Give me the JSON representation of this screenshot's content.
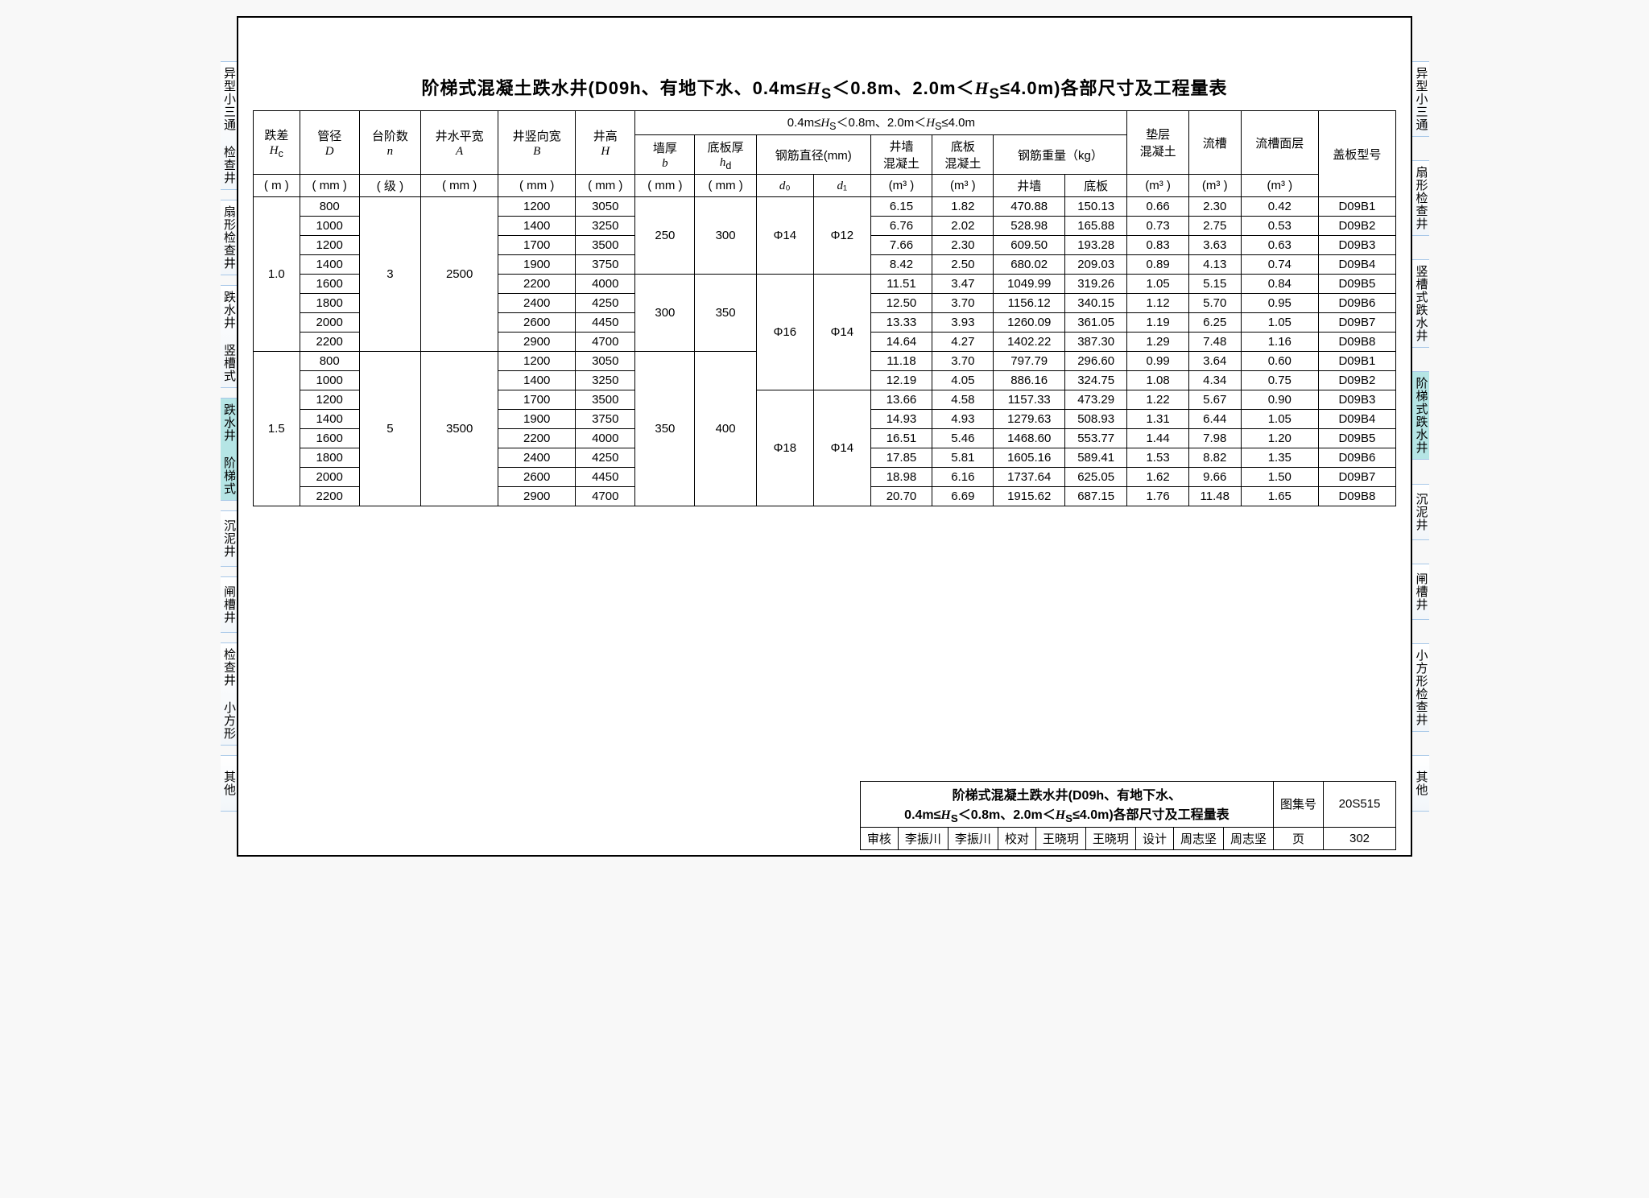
{
  "title_prefix": "阶梯式混凝土跌水井(D09h、有地下水、0.4m≤",
  "title_var": "H",
  "title_sub": "S",
  "title_suffix": "＜0.8m、2.0m＜H S ≤4.0m)各部尺寸及工程量表",
  "title_full": "阶梯式混凝土跌水井(D09h、有地下水、0.4m≤H_S＜0.8m、2.0m＜H_S≤4.0m)各部尺寸及工程量表",
  "side_tabs": [
    "异型小三通",
    "扇形检查井",
    "竖槽式跌水井",
    "阶梯式跌水井",
    "沉泥井",
    "闸槽井",
    "小方形检查井",
    "其他"
  ],
  "side_tabs_left": [
    "异型小三通 检查井",
    "扇形检查井",
    "跌水井 竖槽式",
    "跌水井 阶梯式",
    "沉泥井",
    "闸槽井",
    "检查井 小方形",
    "其他"
  ],
  "active_tab_index": 3,
  "header": {
    "span_label": "0.4m≤H_S＜0.8m、2.0m＜H_S≤4.0m",
    "cols": {
      "Hc": {
        "l1": "跌差",
        "l2": "H_c",
        "l3": "( m )"
      },
      "D": {
        "l1": "管径",
        "l2": "D",
        "l3": "( mm )"
      },
      "n": {
        "l1": "台阶数",
        "l2": "n",
        "l3": "( 级 )"
      },
      "A": {
        "l1": "井水平宽",
        "l2": "A",
        "l3": "( mm )"
      },
      "B": {
        "l1": "井竖向宽",
        "l2": "B",
        "l3": "( mm )"
      },
      "H": {
        "l1": "井高",
        "l2": "H",
        "l3": "( mm )"
      },
      "b": {
        "l1": "墙厚",
        "l2": "b",
        "l3": "( mm )"
      },
      "hd": {
        "l1": "底板厚",
        "l2": "h_d",
        "l3": "( mm )"
      },
      "dia": {
        "l1": "钢筋直径(mm)",
        "d0": "d₀",
        "d1": "d₁"
      },
      "wall_c": {
        "l1": "井墙",
        "l2": "混凝土",
        "l3": "(m³ )"
      },
      "base_c": {
        "l1": "底板",
        "l2": "混凝土",
        "l3": "(m³ )"
      },
      "rebar": {
        "l1": "钢筋重量（kg）",
        "wall": "井墙",
        "base": "底板"
      },
      "pad": {
        "l1": "垫层",
        "l2": "混凝土",
        "l3": "(m³ )"
      },
      "trough": {
        "l1": "流槽",
        "l3": "(m³ )"
      },
      "trough_face": {
        "l1": "流槽面层",
        "l3": "(m³ )"
      },
      "cover": {
        "l1": "盖板型号"
      }
    }
  },
  "groups": [
    {
      "Hc": "1.0",
      "n": "3",
      "A": "2500",
      "b_groups": [
        {
          "b": "250",
          "hd": "300",
          "d0": "Φ14",
          "d1": "Φ12",
          "span": 4
        },
        {
          "b": "300",
          "hd": "350",
          "d0": "Φ16",
          "d1_continue": true,
          "span": 4
        }
      ],
      "rows": [
        {
          "D": "800",
          "B": "1200",
          "H": "3050",
          "wc": "6.15",
          "bc": "1.82",
          "rw": "470.88",
          "rb": "150.13",
          "pad": "0.66",
          "tr": "2.30",
          "tf": "0.42",
          "cv": "D09B1"
        },
        {
          "D": "1000",
          "B": "1400",
          "H": "3250",
          "wc": "6.76",
          "bc": "2.02",
          "rw": "528.98",
          "rb": "165.88",
          "pad": "0.73",
          "tr": "2.75",
          "tf": "0.53",
          "cv": "D09B2"
        },
        {
          "D": "1200",
          "B": "1700",
          "H": "3500",
          "wc": "7.66",
          "bc": "2.30",
          "rw": "609.50",
          "rb": "193.28",
          "pad": "0.83",
          "tr": "3.63",
          "tf": "0.63",
          "cv": "D09B3"
        },
        {
          "D": "1400",
          "B": "1900",
          "H": "3750",
          "wc": "8.42",
          "bc": "2.50",
          "rw": "680.02",
          "rb": "209.03",
          "pad": "0.89",
          "tr": "4.13",
          "tf": "0.74",
          "cv": "D09B4"
        },
        {
          "D": "1600",
          "B": "2200",
          "H": "4000",
          "wc": "11.51",
          "bc": "3.47",
          "rw": "1049.99",
          "rb": "319.26",
          "pad": "1.05",
          "tr": "5.15",
          "tf": "0.84",
          "cv": "D09B5"
        },
        {
          "D": "1800",
          "B": "2400",
          "H": "4250",
          "wc": "12.50",
          "bc": "3.70",
          "rw": "1156.12",
          "rb": "340.15",
          "pad": "1.12",
          "tr": "5.70",
          "tf": "0.95",
          "cv": "D09B6"
        },
        {
          "D": "2000",
          "B": "2600",
          "H": "4450",
          "wc": "13.33",
          "bc": "3.93",
          "rw": "1260.09",
          "rb": "361.05",
          "pad": "1.19",
          "tr": "6.25",
          "tf": "1.05",
          "cv": "D09B7"
        },
        {
          "D": "2200",
          "B": "2900",
          "H": "4700",
          "wc": "14.64",
          "bc": "4.27",
          "rw": "1402.22",
          "rb": "387.30",
          "pad": "1.29",
          "tr": "7.48",
          "tf": "1.16",
          "cv": "D09B8"
        }
      ]
    },
    {
      "Hc": "1.5",
      "n": "5",
      "A": "3500",
      "b_groups": [
        {
          "b": "350",
          "hd": "400",
          "d0_top": "Φ16",
          "d0_bot": "Φ18",
          "d1": "Φ14",
          "span": 8
        }
      ],
      "rows": [
        {
          "D": "800",
          "B": "1200",
          "H": "3050",
          "wc": "11.18",
          "bc": "3.70",
          "rw": "797.79",
          "rb": "296.60",
          "pad": "0.99",
          "tr": "3.64",
          "tf": "0.60",
          "cv": "D09B1"
        },
        {
          "D": "1000",
          "B": "1400",
          "H": "3250",
          "wc": "12.19",
          "bc": "4.05",
          "rw": "886.16",
          "rb": "324.75",
          "pad": "1.08",
          "tr": "4.34",
          "tf": "0.75",
          "cv": "D09B2"
        },
        {
          "D": "1200",
          "B": "1700",
          "H": "3500",
          "wc": "13.66",
          "bc": "4.58",
          "rw": "1157.33",
          "rb": "473.29",
          "pad": "1.22",
          "tr": "5.67",
          "tf": "0.90",
          "cv": "D09B3"
        },
        {
          "D": "1400",
          "B": "1900",
          "H": "3750",
          "wc": "14.93",
          "bc": "4.93",
          "rw": "1279.63",
          "rb": "508.93",
          "pad": "1.31",
          "tr": "6.44",
          "tf": "1.05",
          "cv": "D09B4"
        },
        {
          "D": "1600",
          "B": "2200",
          "H": "4000",
          "wc": "16.51",
          "bc": "5.46",
          "rw": "1468.60",
          "rb": "553.77",
          "pad": "1.44",
          "tr": "7.98",
          "tf": "1.20",
          "cv": "D09B5"
        },
        {
          "D": "1800",
          "B": "2400",
          "H": "4250",
          "wc": "17.85",
          "bc": "5.81",
          "rw": "1605.16",
          "rb": "589.41",
          "pad": "1.53",
          "tr": "8.82",
          "tf": "1.35",
          "cv": "D09B6"
        },
        {
          "D": "2000",
          "B": "2600",
          "H": "4450",
          "wc": "18.98",
          "bc": "6.16",
          "rw": "1737.64",
          "rb": "625.05",
          "pad": "1.62",
          "tr": "9.66",
          "tf": "1.50",
          "cv": "D09B7"
        },
        {
          "D": "2200",
          "B": "2900",
          "H": "4700",
          "wc": "20.70",
          "bc": "6.69",
          "rw": "1915.62",
          "rb": "687.15",
          "pad": "1.76",
          "tr": "11.48",
          "tf": "1.65",
          "cv": "D09B8"
        }
      ]
    }
  ],
  "footer": {
    "desc1": "阶梯式混凝土跌水井(D09h、有地下水、",
    "desc2": "0.4m≤H_S＜0.8m、2.0m＜H_S≤4.0m)各部尺寸及工程量表",
    "set_label": "图集号",
    "set_no": "20S515",
    "page_label": "页",
    "page_no": "302",
    "roles": {
      "review": "审核",
      "review_name": "李振川",
      "review_sig": "李振川",
      "check": "校对",
      "check_name": "王晓玥",
      "check_sig": "王晓玥",
      "design": "设计",
      "design_name": "周志坚",
      "design_sig": "周志坚"
    }
  }
}
